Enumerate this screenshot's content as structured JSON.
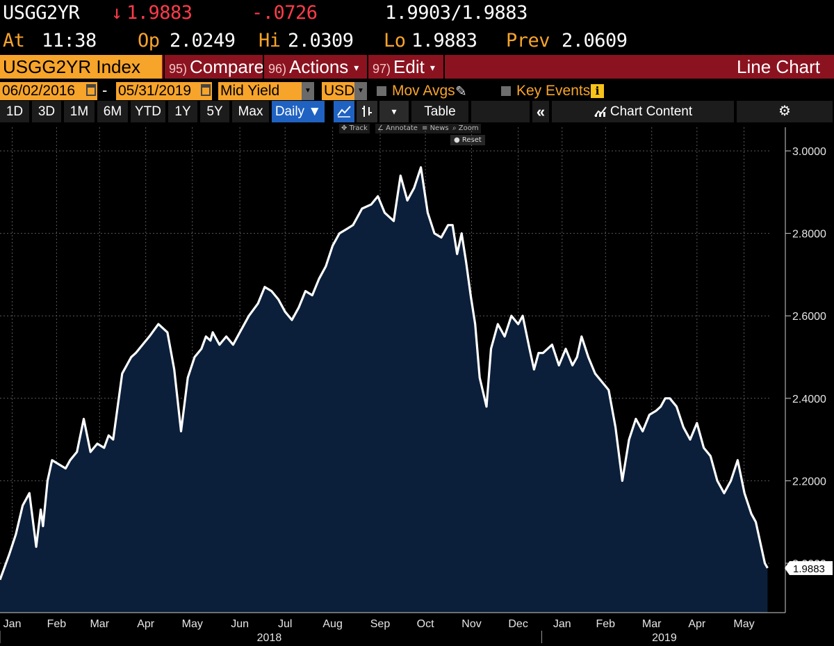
{
  "quote": {
    "ticker": "USGG2YR",
    "last_arrow": "↓",
    "last": "1.9883",
    "change": "-.0726",
    "bid_ask": "1.9903/1.9883",
    "at_label": "At",
    "time": "11:38",
    "open_label": "Op",
    "open": "2.0249",
    "high_label": "Hi",
    "high": "2.0309",
    "low_label": "Lo",
    "low": "1.9883",
    "prev_label": "Prev",
    "prev": "2.0609"
  },
  "command_bar": {
    "security": "USGG2YR Index",
    "compare_num": "95)",
    "compare": "Compare",
    "actions_num": "96)",
    "actions": "Actions",
    "edit_num": "97)",
    "edit": "Edit",
    "caret": "▾",
    "chart_type": "Line Chart"
  },
  "params": {
    "start_date": "06/02/2016",
    "dash": "-",
    "end_date": "05/31/2019",
    "field": "Mid Yield",
    "currency": "USD",
    "mov_avgs": "Mov Avgs",
    "key_events": "Key Events",
    "info_icon": "i"
  },
  "range_bar": {
    "ranges": [
      "1D",
      "3D",
      "1M",
      "6M",
      "YTD",
      "1Y",
      "5Y",
      "Max"
    ],
    "periodicity": "Daily ▼",
    "dropdown_caret": "▾",
    "table": "Table",
    "collapse": "«",
    "chart_content": "Chart Content",
    "settings_icon": "⚙"
  },
  "chart_tools": {
    "track": "Track",
    "annotate": "Annotate",
    "news": "News",
    "zoom": "Zoom",
    "reset": "Reset"
  },
  "colors": {
    "background": "#000000",
    "area_fill": "#0b1f3a",
    "line": "#ffffff",
    "grid": "#5a5a5a",
    "accent_orange": "#f7a42b",
    "down_red": "#ff3b4a",
    "command_red": "#8b1320",
    "active_blue": "#1f62c2"
  },
  "chart_data": {
    "type": "area",
    "title": "USGG2YR Index",
    "ylim": [
      1.9,
      3.05
    ],
    "yticks": [
      "3.0000",
      "2.8000",
      "2.6000",
      "2.4000",
      "2.2000",
      "2.0000"
    ],
    "ytick_values": [
      3.0,
      2.8,
      2.6,
      2.4,
      2.2,
      2.0
    ],
    "last_value_label": "1.9883",
    "last_value": 1.9883,
    "xlim": [
      0,
      17
    ],
    "month_labels": [
      "Jan",
      "Feb",
      "Mar",
      "Apr",
      "May",
      "Jun",
      "Jul",
      "Aug",
      "Sep",
      "Oct",
      "Nov",
      "Dec",
      "Jan",
      "Feb",
      "Mar",
      "Apr",
      "May"
    ],
    "month_positions": [
      0.27,
      1.25,
      2.2,
      3.22,
      4.25,
      5.3,
      6.3,
      7.35,
      8.4,
      9.4,
      10.42,
      11.45,
      12.42,
      13.38,
      14.4,
      15.4,
      16.44
    ],
    "year_labels": [
      {
        "label": "2018",
        "x": 5.95
      },
      {
        "label": "2019",
        "x": 14.68
      }
    ],
    "year_boundaries": [
      0,
      11.97
    ],
    "grid": true,
    "series": [
      {
        "name": "USGG2YR Mid Yield",
        "x": [
          0,
          0.2,
          0.35,
          0.5,
          0.65,
          0.8,
          0.9,
          0.95,
          1.05,
          1.15,
          1.3,
          1.45,
          1.55,
          1.7,
          1.85,
          2.0,
          2.15,
          2.3,
          2.4,
          2.5,
          2.6,
          2.7,
          2.8,
          2.9,
          3.0,
          3.15,
          3.3,
          3.5,
          3.7,
          3.85,
          4.0,
          4.15,
          4.3,
          4.45,
          4.55,
          4.65,
          4.7,
          4.75,
          4.85,
          5.0,
          5.15,
          5.3,
          5.5,
          5.7,
          5.85,
          6.0,
          6.15,
          6.3,
          6.45,
          6.6,
          6.75,
          6.9,
          7.05,
          7.2,
          7.35,
          7.5,
          7.65,
          7.8,
          8.0,
          8.2,
          8.35,
          8.5,
          8.7,
          8.85,
          9.0,
          9.15,
          9.3,
          9.45,
          9.6,
          9.75,
          9.9,
          10.0,
          10.1,
          10.2,
          10.3,
          10.4,
          10.5,
          10.6,
          10.75,
          10.85,
          11.0,
          11.15,
          11.3,
          11.45,
          11.55,
          11.7,
          11.8,
          11.9,
          12.0,
          12.2,
          12.35,
          12.5,
          12.65,
          12.75,
          12.85,
          13.0,
          13.15,
          13.3,
          13.45,
          13.6,
          13.75,
          13.9,
          14.05,
          14.2,
          14.35,
          14.5,
          14.6,
          14.7,
          14.8,
          14.95,
          15.1,
          15.25,
          15.4,
          15.55,
          15.7,
          15.85,
          16.0,
          16.15,
          16.3,
          16.45,
          16.6,
          16.7,
          16.8,
          16.9,
          16.96
        ],
        "values": [
          1.96,
          2.02,
          2.07,
          2.14,
          2.17,
          2.04,
          2.13,
          2.09,
          2.2,
          2.25,
          2.24,
          2.23,
          2.25,
          2.27,
          2.35,
          2.27,
          2.29,
          2.28,
          2.31,
          2.3,
          2.38,
          2.46,
          2.48,
          2.5,
          2.51,
          2.53,
          2.55,
          2.58,
          2.56,
          2.47,
          2.32,
          2.45,
          2.5,
          2.52,
          2.55,
          2.54,
          2.56,
          2.55,
          2.53,
          2.55,
          2.53,
          2.56,
          2.6,
          2.63,
          2.67,
          2.66,
          2.64,
          2.61,
          2.59,
          2.62,
          2.66,
          2.65,
          2.69,
          2.72,
          2.77,
          2.8,
          2.81,
          2.82,
          2.86,
          2.87,
          2.89,
          2.85,
          2.83,
          2.94,
          2.88,
          2.91,
          2.96,
          2.85,
          2.8,
          2.79,
          2.82,
          2.82,
          2.75,
          2.8,
          2.73,
          2.65,
          2.58,
          2.45,
          2.38,
          2.52,
          2.58,
          2.55,
          2.6,
          2.58,
          2.6,
          2.52,
          2.47,
          2.51,
          2.51,
          2.53,
          2.48,
          2.52,
          2.48,
          2.5,
          2.55,
          2.5,
          2.46,
          2.44,
          2.42,
          2.33,
          2.2,
          2.3,
          2.35,
          2.32,
          2.36,
          2.37,
          2.38,
          2.4,
          2.4,
          2.38,
          2.33,
          2.3,
          2.34,
          2.28,
          2.26,
          2.2,
          2.17,
          2.2,
          2.25,
          2.17,
          2.12,
          2.1,
          2.05,
          2.0,
          1.9883
        ]
      }
    ]
  }
}
